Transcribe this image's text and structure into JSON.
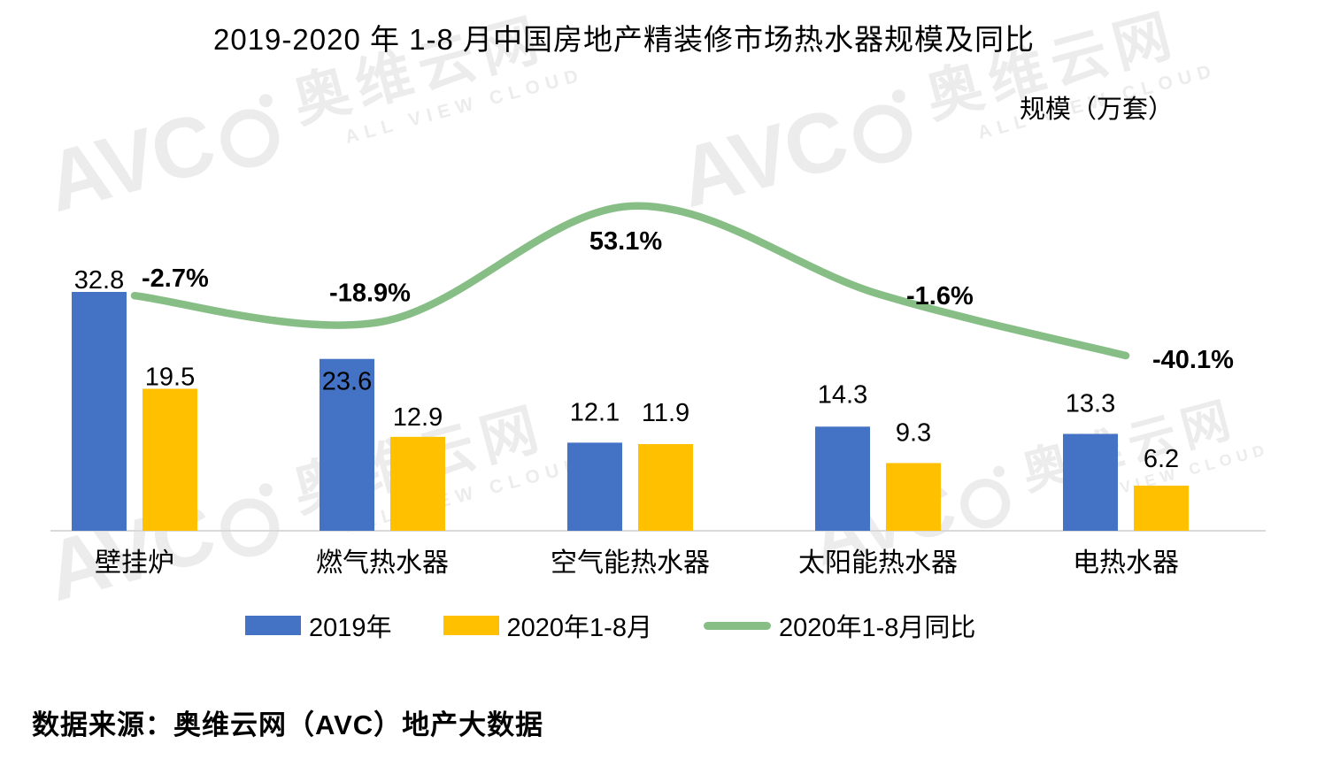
{
  "title": "2019-2020 年 1-8 月中国房地产精装修市场热水器规模及同比",
  "unit_label": "规模（万套）",
  "source": "数据来源：奥维云网（AVC）地产大数据",
  "watermark": {
    "logo": "AVC",
    "cn": "奥维云网",
    "en": "ALL VIEW CLOUD"
  },
  "colors": {
    "bar_2019": "#4472C4",
    "bar_2020": "#FFC000",
    "yoy_line": "#86BE86",
    "axis_line": "#D9D9D9",
    "text": "#000000",
    "watermark": "#ECECEC"
  },
  "legend": [
    {
      "label": "2019年",
      "type": "bar",
      "color": "#4472C4"
    },
    {
      "label": "2020年1-8月",
      "type": "bar",
      "color": "#FFC000"
    },
    {
      "label": "2020年1-8月同比",
      "type": "line",
      "color": "#86BE86"
    }
  ],
  "chart_data": {
    "type": "bar+line",
    "title": "2019-2020 年 1-8 月中国房地产精装修市场热水器规模及同比",
    "unit": "规模（万套）",
    "categories": [
      "壁挂炉",
      "燃气热水器",
      "空气能热水器",
      "太阳能热水器",
      "电热水器"
    ],
    "series": [
      {
        "name": "2019年",
        "type": "bar",
        "color": "#4472C4",
        "values": [
          32.8,
          23.6,
          12.1,
          14.3,
          13.3
        ]
      },
      {
        "name": "2020年1-8月",
        "type": "bar",
        "color": "#FFC000",
        "values": [
          19.5,
          12.9,
          11.9,
          9.3,
          6.2
        ]
      },
      {
        "name": "2020年1-8月同比",
        "type": "line",
        "color": "#86BE86",
        "unit": "%",
        "values": [
          -2.7,
          -18.9,
          53.1,
          -1.6,
          -40.1
        ],
        "labels": [
          "-2.7%",
          "-18.9%",
          "53.1%",
          "-1.6%",
          "-40.1%"
        ]
      }
    ],
    "primary_axis": {
      "label": "规模（万套）",
      "min": 0,
      "implied_max": 36,
      "ticks_visible": false
    },
    "secondary_axis": {
      "unit": "%",
      "ticks_visible": false
    },
    "grid": false,
    "data_labels": true,
    "legend_position": "bottom",
    "line_style": "smoothed"
  }
}
